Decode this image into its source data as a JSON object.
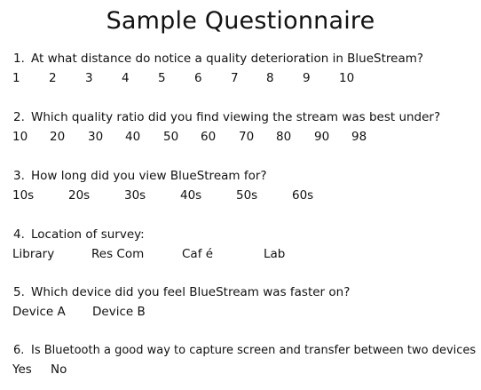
{
  "title": "Sample Questionnaire",
  "questions": [
    {
      "number": "1.",
      "text": "At what distance do notice a quality deterioration in BlueStream?",
      "options": [
        "1",
        "2",
        "3",
        "4",
        "5",
        "6",
        "7",
        "8",
        "9",
        "10"
      ]
    },
    {
      "number": "2.",
      "text": "Which quality ratio did you find viewing the stream was best under?",
      "options": [
        "10",
        "20",
        "30",
        "40",
        "50",
        "60",
        "70",
        "80",
        "90",
        "98"
      ]
    },
    {
      "number": "3.",
      "text": "How long did you view BlueStream for?",
      "options": [
        "10s",
        "20s",
        "30s",
        "40s",
        "50s",
        "60s"
      ]
    },
    {
      "number": "4.",
      "text": "Location of survey:",
      "options": [
        "Library",
        "Res Com",
        "Caf é",
        "Lab"
      ]
    },
    {
      "number": "5.",
      "text": "Which device did you feel BlueStream was faster on?",
      "options": [
        "Device A",
        "Device B"
      ]
    },
    {
      "number": "6.",
      "text": "Is Bluetooth a good way to capture screen and transfer between two devices",
      "options": [
        "Yes",
        "No"
      ]
    }
  ]
}
